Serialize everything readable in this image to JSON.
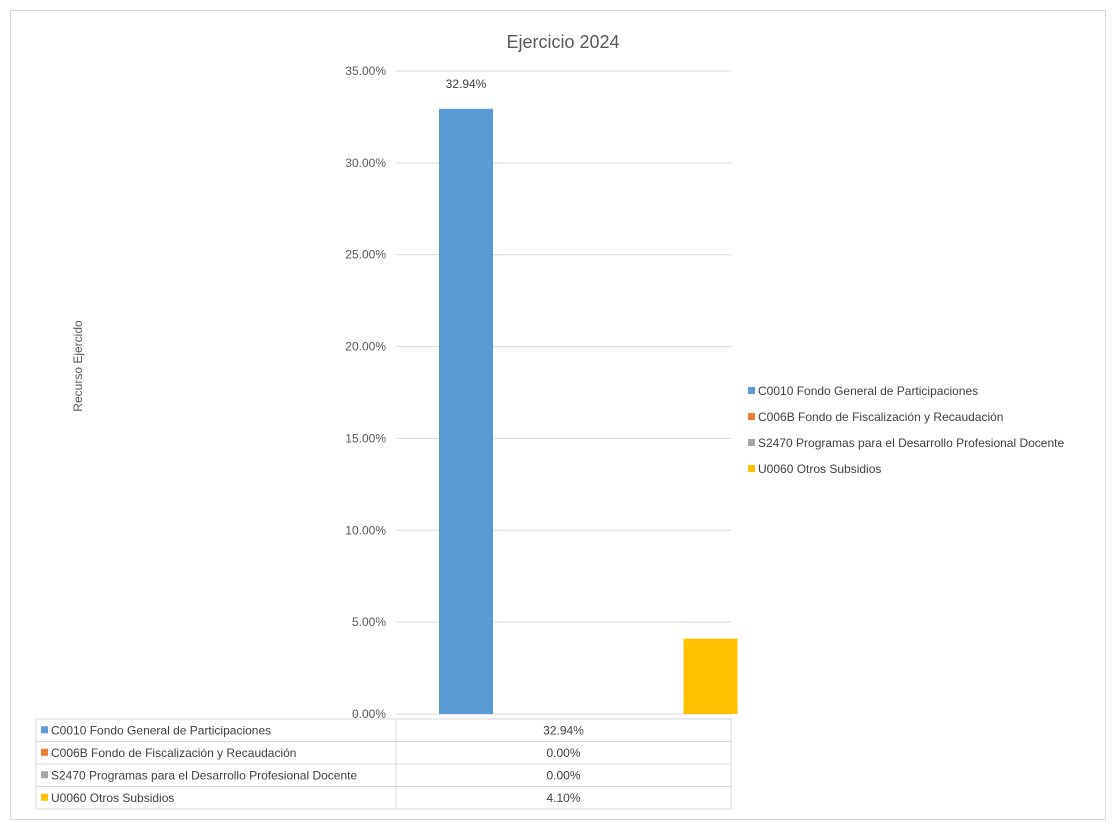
{
  "chart_data": {
    "type": "bar",
    "title": "Ejercicio 2024",
    "ylabel": "Recurso Ejercido",
    "xlabel": "",
    "ylim": [
      0,
      35
    ],
    "y_ticks": [
      "0.00%",
      "5.00%",
      "10.00%",
      "15.00%",
      "20.00%",
      "25.00%",
      "30.00%",
      "35.00%"
    ],
    "grid": true,
    "legend_position": "right",
    "value_suffix": "%",
    "series": [
      {
        "name": "C0010 Fondo General de Participaciones",
        "color": "#5b9bd5",
        "value": 32.94,
        "table_label": "32.94%",
        "data_label": "32.94%"
      },
      {
        "name": "C006B Fondo de Fiscalización y Recaudación",
        "color": "#ed7d31",
        "value": 0.0,
        "table_label": "0.00%",
        "data_label": ""
      },
      {
        "name": "S2470 Programas para el Desarrollo Profesional Docente",
        "color": "#a5a5a5",
        "value": 0.0,
        "table_label": "0.00%",
        "data_label": ""
      },
      {
        "name": "U0060 Otros Subsidios",
        "color": "#ffc000",
        "value": 4.1,
        "table_label": "4.10%",
        "data_label": ""
      }
    ]
  }
}
